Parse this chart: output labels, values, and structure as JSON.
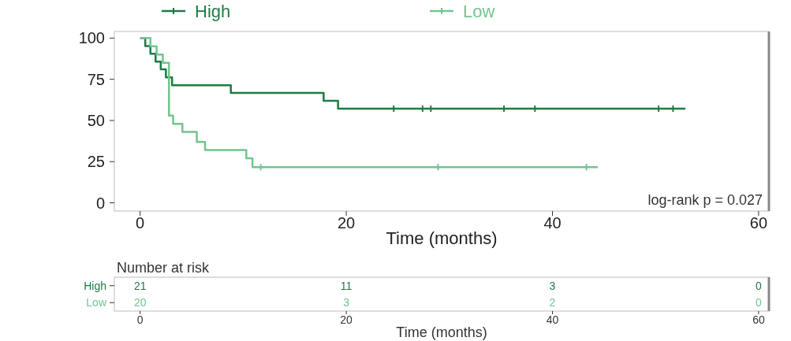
{
  "chart_data": [
    {
      "type": "step",
      "xlabel": "Time (months)",
      "xlim": [
        -2.5,
        61
      ],
      "xticks": [
        0,
        20,
        40,
        60
      ],
      "ylim": [
        -5,
        104
      ],
      "yticks": [
        0,
        25,
        50,
        75,
        100
      ],
      "legend": "top",
      "grid": false,
      "annotations": [
        "log-rank p = 0.027"
      ],
      "series": [
        {
          "name": "High",
          "color": "#1e7b45",
          "x": [
            0,
            0.5,
            1,
            1.5,
            2,
            2.5,
            3.1,
            8.8,
            17.8,
            19.2,
            52.9
          ],
          "values": [
            100,
            95.2,
            90.5,
            85.7,
            81,
            76.2,
            71.4,
            66.7,
            61.9,
            57.1,
            57.1
          ]
        },
        {
          "name": "Low",
          "color": "#72c58f",
          "x": [
            0,
            1,
            1.6,
            2.2,
            2.8,
            3.2,
            4.1,
            5.5,
            6.3,
            10.3,
            10.9,
            44.4
          ],
          "values": [
            100,
            95,
            90,
            85,
            53,
            48,
            43,
            37,
            32,
            27,
            21.6,
            21.6
          ]
        },
        {
          "type": "scatter",
          "color": "#1e7b45",
          "marker": "cross",
          "x": [
            24.6,
            27.4,
            28.2,
            35.3,
            38.3,
            50.3,
            51.7
          ],
          "values": [
            57.1,
            57.1,
            57.1,
            57.1,
            57.1,
            57.1,
            57.1
          ]
        },
        {
          "type": "scatter",
          "color": "#72c58f",
          "marker": "cross",
          "x": [
            11.7,
            28.9,
            43.3
          ],
          "values": [
            21.6,
            21.6,
            21.6
          ]
        }
      ]
    },
    {
      "type": "heatmap",
      "title": "Number at risk",
      "xlabel": "Time (months)",
      "xlim": [
        -2.5,
        61
      ],
      "xticks": [
        0,
        20,
        40,
        60
      ],
      "data_labels": true,
      "x": [
        0,
        20,
        40,
        60
      ],
      "y_categories": [
        "High",
        "Low"
      ],
      "colors": [
        "#1e7b45",
        "#72c58f"
      ],
      "cells": [
        [
          21,
          11,
          3,
          0
        ],
        [
          20,
          3,
          2,
          0
        ]
      ]
    }
  ]
}
